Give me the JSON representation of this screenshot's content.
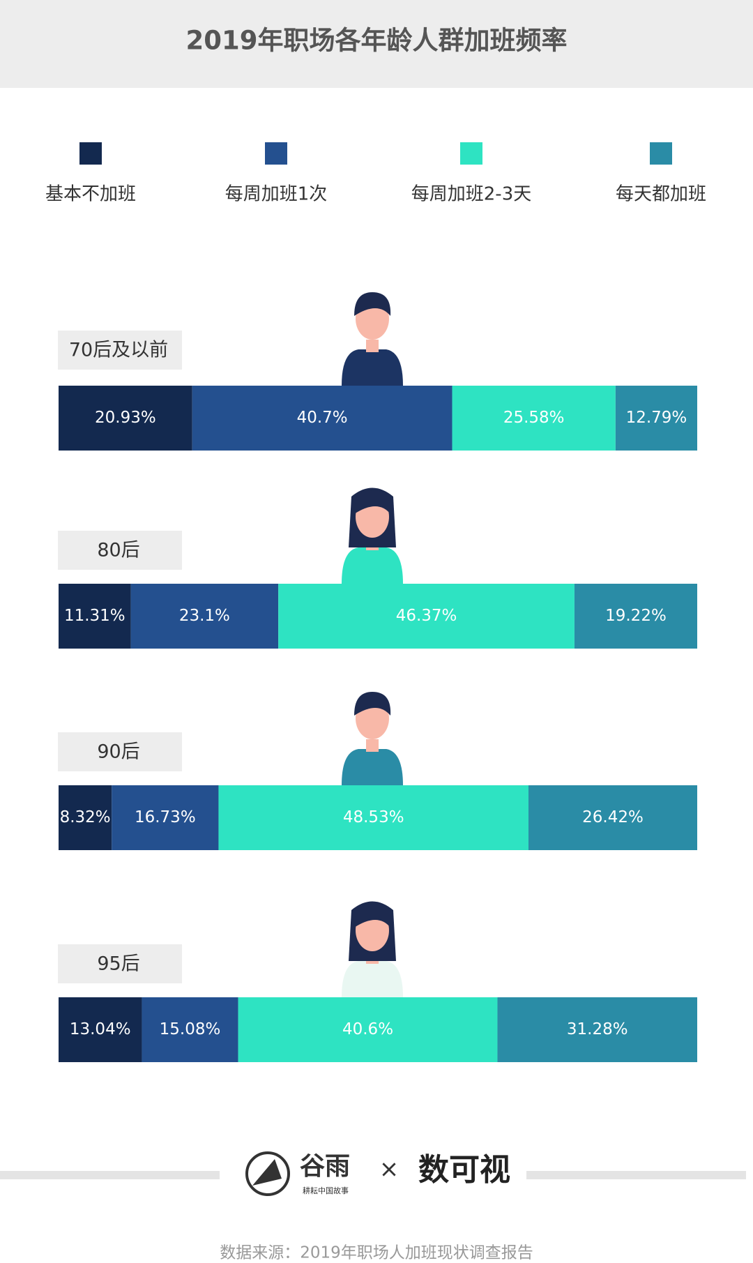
{
  "chart_data": {
    "type": "stacked-hbar",
    "title": "2019年职场各年龄人群加班频率",
    "categories": [
      "70后及以前",
      "80后",
      "90后",
      "95后"
    ],
    "xlim": [
      0,
      100
    ],
    "series": [
      {
        "name": "基本不加班",
        "color": "#13294f",
        "values": [
          20.93,
          11.31,
          8.32,
          13.04
        ],
        "value_labels": [
          "20.93%",
          "11.31%",
          "8.32%",
          "13.04%"
        ]
      },
      {
        "name": "每周加班1次",
        "color": "#24508f",
        "values": [
          40.7,
          23.1,
          16.73,
          15.08
        ],
        "value_labels": [
          "40.7%",
          "23.1%",
          "16.73%",
          "15.08%"
        ]
      },
      {
        "name": "每周加班2-3天",
        "color": "#2ee3c2",
        "values": [
          25.58,
          46.37,
          48.53,
          40.6
        ],
        "value_labels": [
          "25.58%",
          "46.37%",
          "48.53%",
          "40.6%"
        ]
      },
      {
        "name": "每天都加班",
        "color": "#2a8ca6",
        "values": [
          12.79,
          19.22,
          26.42,
          31.28
        ],
        "value_labels": [
          "12.79%",
          "19.22%",
          "26.42%",
          "31.28%"
        ]
      }
    ],
    "logos": [
      "谷雨",
      "数可视"
    ],
    "tagline": "耕耘中国故事",
    "source": "数据来源：2019年职场人加班现状调查报告"
  }
}
